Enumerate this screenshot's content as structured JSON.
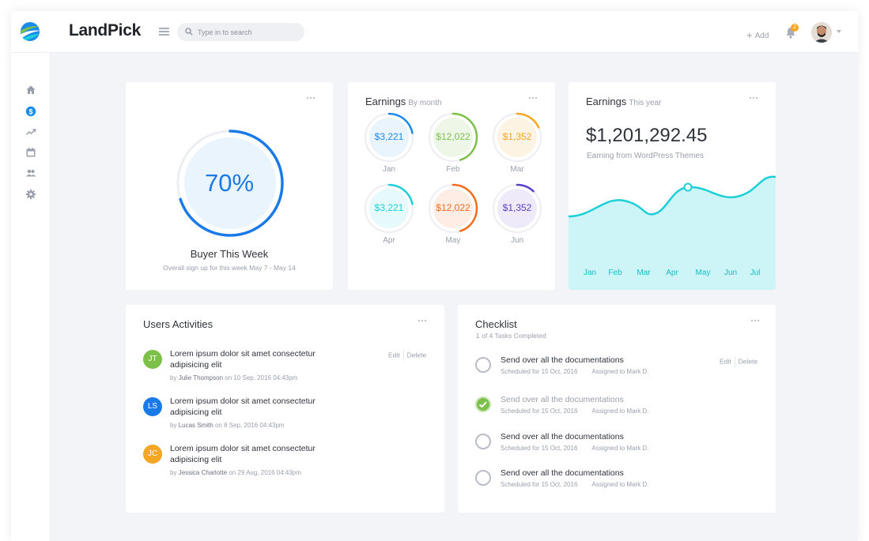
{
  "header": {
    "brand": "LandPick",
    "search_placeholder": "Type in to search",
    "add_label": "Add",
    "notification_count": "2"
  },
  "sidebar": {
    "items": [
      {
        "icon": "home-icon",
        "active": false
      },
      {
        "icon": "dollar-icon",
        "active": true
      },
      {
        "icon": "trending-icon",
        "active": false
      },
      {
        "icon": "calendar-icon",
        "active": false
      },
      {
        "icon": "users-icon",
        "active": false
      },
      {
        "icon": "gear-icon",
        "active": false
      }
    ]
  },
  "buyer_card": {
    "percent": "70%",
    "progress": 0.7,
    "title": "Buyer This Week",
    "subtitle": "Overall sign up for this week May 7 - May 14"
  },
  "earnings_month": {
    "title": "Earnings",
    "subtitle": "By month",
    "items": [
      {
        "value": "$3,221",
        "month": "Jan",
        "color": "#1a8be8",
        "bg": "#eaf4fd",
        "progress": 0.22
      },
      {
        "value": "$12,022",
        "month": "Feb",
        "color": "#7cc04a",
        "bg": "#eef7e7",
        "progress": 0.45
      },
      {
        "value": "$1,352",
        "month": "Mar",
        "color": "#f5a623",
        "bg": "#fdf3e3",
        "progress": 0.18
      },
      {
        "value": "$3,221",
        "month": "Apr",
        "color": "#1ccfd8",
        "bg": "#e6fafb",
        "progress": 0.22
      },
      {
        "value": "$12,022",
        "month": "May",
        "color": "#f56b1c",
        "bg": "#fdede4",
        "progress": 0.45
      },
      {
        "value": "$1,352",
        "month": "Jun",
        "color": "#5b3fc4",
        "bg": "#eeeafa",
        "progress": 0.12
      }
    ]
  },
  "earnings_year": {
    "title": "Earnings",
    "subtitle": "This year",
    "amount": "$1,201,292.45",
    "caption": "Earning from WordPress Themes",
    "chart_data": {
      "type": "area",
      "categories": [
        "Jan",
        "Feb",
        "Mar",
        "Apr",
        "May",
        "Jun",
        "Jul"
      ],
      "color": "#1ccfd8",
      "fill": "#cdf5f7"
    }
  },
  "activities": {
    "title": "Users Activities",
    "edit_label": "Edit",
    "delete_label": "Delete",
    "items": [
      {
        "initials": "JT",
        "color": "#7cc04a",
        "text": "Lorem ipsum dolor sit amet consectetur adipisicing elit",
        "by": "by",
        "name": "Julie Thompson",
        "on": "on 10 Sep, 2016 04:43pm"
      },
      {
        "initials": "LS",
        "color": "#1a7be8",
        "text": "Lorem ipsum dolor sit amet consectetur adipisicing elit",
        "by": "by",
        "name": "Lucas Smith",
        "on": "on 8 Sep, 2016 04:43pm"
      },
      {
        "initials": "JC",
        "color": "#f5a623",
        "text": "Lorem ipsum dolor sit amet consectetur adipisicing elit",
        "by": "by",
        "name": "Jessica Charlotte",
        "on": "on 29 Aug, 2016 04:43pm"
      }
    ]
  },
  "checklist": {
    "title": "Checklist",
    "subtitle": "1 of 4 Tasks Completed",
    "edit_label": "Edit",
    "delete_label": "Delete",
    "items": [
      {
        "title": "Send over all the documentations",
        "scheduled": "Scheduled for 15 Oct, 2016",
        "assigned": "Assigned to Mark D.",
        "done": false
      },
      {
        "title": "Send over all the documentations",
        "scheduled": "Scheduled for 15 Oct, 2016",
        "assigned": "Assigned to Mark D.",
        "done": true
      },
      {
        "title": "Send over all the documentations",
        "scheduled": "Scheduled for 15 Oct, 2016",
        "assigned": "Assigned to Mark D.",
        "done": false
      },
      {
        "title": "Send over all the documentations",
        "scheduled": "Scheduled for 15 Oct, 2016",
        "assigned": "Assigned to Mark D.",
        "done": false
      }
    ]
  }
}
